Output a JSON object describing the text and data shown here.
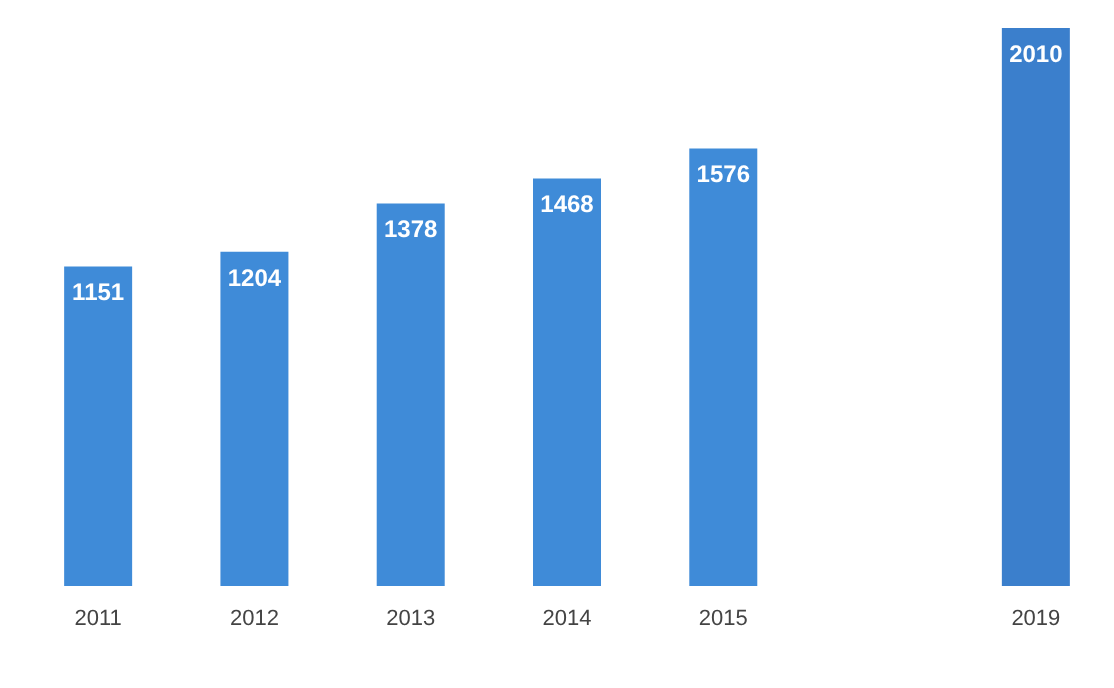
{
  "chart_data": {
    "type": "bar",
    "categories": [
      "2011",
      "2012",
      "2013",
      "2014",
      "2015",
      null,
      "2019"
    ],
    "values": [
      1151,
      1204,
      1378,
      1468,
      1576,
      null,
      2010
    ],
    "colors": [
      "#3f8bd8",
      "#3f8bd8",
      "#3f8bd8",
      "#3f8bd8",
      "#3f8bd8",
      "#3f8bd8",
      "#3b7fcc"
    ],
    "data_labels": true,
    "grid": false,
    "legend": false
  }
}
